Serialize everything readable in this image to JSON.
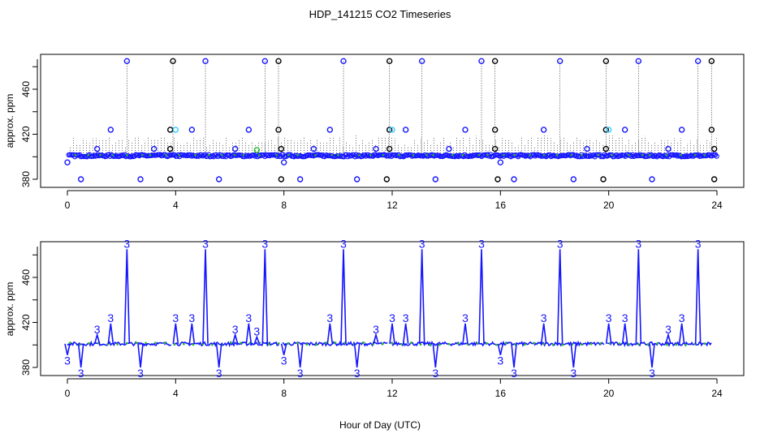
{
  "title": "HDP_141215  CO2 Timeseries",
  "xlabel": "Hour of Day (UTC)",
  "colors": {
    "primary": "#1515ff",
    "flag": "#33ccff",
    "green": "#22bb22",
    "black": "#000000",
    "frame": "#000000"
  },
  "chart_data": [
    {
      "type": "scatter",
      "title": "",
      "ylabel": "approx. ppm",
      "xlim": [
        0,
        24
      ],
      "ylim": [
        377,
        490
      ],
      "xticks": [
        0,
        4,
        8,
        12,
        16,
        20,
        24
      ],
      "yticks": [
        380,
        420,
        460
      ],
      "baseline": 401,
      "grid": false,
      "spikes": [
        {
          "x": 2.2,
          "y": 485,
          "c": "blue"
        },
        {
          "x": 3.9,
          "y": 485,
          "c": "black"
        },
        {
          "x": 5.1,
          "y": 485,
          "c": "blue"
        },
        {
          "x": 7.3,
          "y": 485,
          "c": "blue"
        },
        {
          "x": 7.8,
          "y": 485,
          "c": "black"
        },
        {
          "x": 10.2,
          "y": 485,
          "c": "blue"
        },
        {
          "x": 11.9,
          "y": 485,
          "c": "black"
        },
        {
          "x": 13.1,
          "y": 485,
          "c": "blue"
        },
        {
          "x": 15.3,
          "y": 485,
          "c": "blue"
        },
        {
          "x": 15.8,
          "y": 485,
          "c": "black"
        },
        {
          "x": 18.2,
          "y": 485,
          "c": "blue"
        },
        {
          "x": 19.9,
          "y": 485,
          "c": "black"
        },
        {
          "x": 21.1,
          "y": 485,
          "c": "blue"
        },
        {
          "x": 23.3,
          "y": 485,
          "c": "blue"
        },
        {
          "x": 23.8,
          "y": 485,
          "c": "black"
        },
        {
          "x": 1.6,
          "y": 424,
          "c": "blue"
        },
        {
          "x": 3.8,
          "y": 424,
          "c": "black"
        },
        {
          "x": 4.0,
          "y": 424,
          "c": "cyan"
        },
        {
          "x": 4.6,
          "y": 424,
          "c": "blue"
        },
        {
          "x": 6.7,
          "y": 424,
          "c": "blue"
        },
        {
          "x": 7.8,
          "y": 424,
          "c": "black"
        },
        {
          "x": 9.7,
          "y": 424,
          "c": "blue"
        },
        {
          "x": 11.9,
          "y": 424,
          "c": "black"
        },
        {
          "x": 12.0,
          "y": 424,
          "c": "cyan"
        },
        {
          "x": 12.5,
          "y": 424,
          "c": "blue"
        },
        {
          "x": 14.7,
          "y": 424,
          "c": "blue"
        },
        {
          "x": 15.8,
          "y": 424,
          "c": "black"
        },
        {
          "x": 17.6,
          "y": 424,
          "c": "blue"
        },
        {
          "x": 19.9,
          "y": 424,
          "c": "black"
        },
        {
          "x": 20.0,
          "y": 424,
          "c": "cyan"
        },
        {
          "x": 20.6,
          "y": 424,
          "c": "blue"
        },
        {
          "x": 22.7,
          "y": 424,
          "c": "blue"
        },
        {
          "x": 23.8,
          "y": 424,
          "c": "black"
        },
        {
          "x": 1.1,
          "y": 407,
          "c": "blue"
        },
        {
          "x": 3.2,
          "y": 407,
          "c": "blue"
        },
        {
          "x": 3.8,
          "y": 407,
          "c": "black"
        },
        {
          "x": 6.2,
          "y": 407,
          "c": "blue"
        },
        {
          "x": 7.0,
          "y": 406,
          "c": "green"
        },
        {
          "x": 7.9,
          "y": 407,
          "c": "black"
        },
        {
          "x": 9.1,
          "y": 407,
          "c": "blue"
        },
        {
          "x": 11.4,
          "y": 407,
          "c": "blue"
        },
        {
          "x": 11.9,
          "y": 407,
          "c": "black"
        },
        {
          "x": 14.1,
          "y": 407,
          "c": "blue"
        },
        {
          "x": 15.8,
          "y": 407,
          "c": "black"
        },
        {
          "x": 19.2,
          "y": 407,
          "c": "blue"
        },
        {
          "x": 19.9,
          "y": 407,
          "c": "black"
        },
        {
          "x": 22.2,
          "y": 407,
          "c": "blue"
        },
        {
          "x": 23.9,
          "y": 407,
          "c": "black"
        },
        {
          "x": 0.5,
          "y": 380,
          "c": "blue"
        },
        {
          "x": 2.7,
          "y": 380,
          "c": "blue"
        },
        {
          "x": 3.8,
          "y": 380,
          "c": "black"
        },
        {
          "x": 5.6,
          "y": 380,
          "c": "blue"
        },
        {
          "x": 7.9,
          "y": 380,
          "c": "black"
        },
        {
          "x": 8.6,
          "y": 380,
          "c": "blue"
        },
        {
          "x": 10.7,
          "y": 380,
          "c": "blue"
        },
        {
          "x": 11.8,
          "y": 380,
          "c": "black"
        },
        {
          "x": 13.6,
          "y": 380,
          "c": "blue"
        },
        {
          "x": 15.9,
          "y": 380,
          "c": "black"
        },
        {
          "x": 16.5,
          "y": 380,
          "c": "blue"
        },
        {
          "x": 18.7,
          "y": 380,
          "c": "blue"
        },
        {
          "x": 19.8,
          "y": 380,
          "c": "black"
        },
        {
          "x": 21.6,
          "y": 380,
          "c": "blue"
        },
        {
          "x": 23.9,
          "y": 380,
          "c": "black"
        },
        {
          "x": 0.0,
          "y": 395,
          "c": "blue"
        },
        {
          "x": 8.0,
          "y": 395,
          "c": "blue"
        },
        {
          "x": 16.0,
          "y": 395,
          "c": "blue"
        }
      ]
    },
    {
      "type": "line",
      "title": "",
      "ylabel": "approx. ppm",
      "xlim": [
        0,
        24
      ],
      "ylim": [
        377,
        490
      ],
      "xticks": [
        0,
        4,
        8,
        12,
        16,
        20,
        24
      ],
      "yticks": [
        380,
        420,
        460
      ],
      "baseline": 401,
      "grid": false,
      "marker_label": "3",
      "gaps": [
        3.85,
        7.85,
        11.85,
        15.85,
        19.85
      ],
      "spikes": [
        {
          "x": 2.2,
          "y": 485
        },
        {
          "x": 5.1,
          "y": 485
        },
        {
          "x": 7.3,
          "y": 485
        },
        {
          "x": 10.2,
          "y": 485
        },
        {
          "x": 13.1,
          "y": 485
        },
        {
          "x": 15.3,
          "y": 485
        },
        {
          "x": 18.2,
          "y": 485
        },
        {
          "x": 21.1,
          "y": 485
        },
        {
          "x": 23.3,
          "y": 485
        },
        {
          "x": 1.6,
          "y": 419
        },
        {
          "x": 4.0,
          "y": 419
        },
        {
          "x": 4.6,
          "y": 419
        },
        {
          "x": 6.7,
          "y": 419
        },
        {
          "x": 9.7,
          "y": 419
        },
        {
          "x": 12.0,
          "y": 419
        },
        {
          "x": 12.5,
          "y": 419
        },
        {
          "x": 14.7,
          "y": 419
        },
        {
          "x": 17.6,
          "y": 419
        },
        {
          "x": 20.0,
          "y": 419
        },
        {
          "x": 20.6,
          "y": 419
        },
        {
          "x": 22.7,
          "y": 419
        },
        {
          "x": 1.1,
          "y": 409
        },
        {
          "x": 6.2,
          "y": 409
        },
        {
          "x": 11.4,
          "y": 409
        },
        {
          "x": 22.2,
          "y": 409
        },
        {
          "x": 7.0,
          "y": 407
        },
        {
          "x": 0.5,
          "y": 380
        },
        {
          "x": 2.7,
          "y": 380
        },
        {
          "x": 5.6,
          "y": 380
        },
        {
          "x": 8.6,
          "y": 380
        },
        {
          "x": 10.7,
          "y": 380
        },
        {
          "x": 13.6,
          "y": 380
        },
        {
          "x": 16.5,
          "y": 380
        },
        {
          "x": 18.7,
          "y": 380
        },
        {
          "x": 21.6,
          "y": 380
        },
        {
          "x": 0.0,
          "y": 391
        },
        {
          "x": 8.0,
          "y": 391
        },
        {
          "x": 16.0,
          "y": 391
        }
      ]
    }
  ]
}
